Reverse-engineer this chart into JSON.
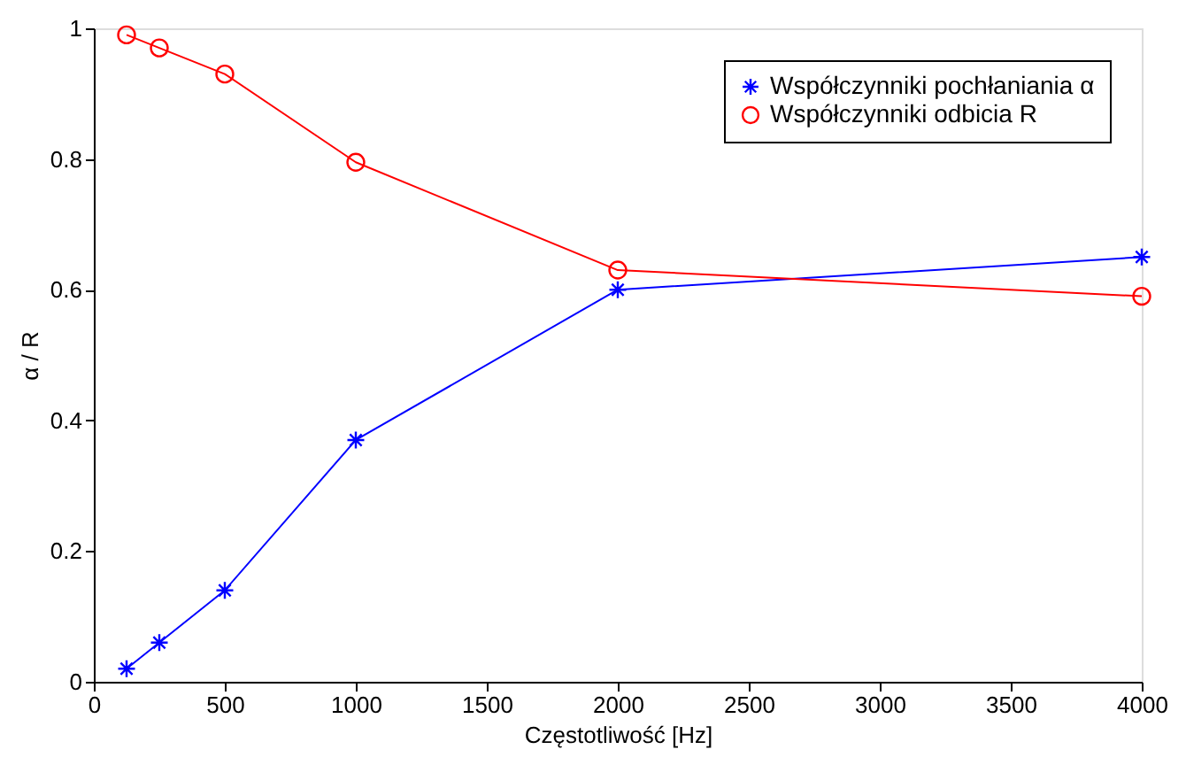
{
  "chart_data": {
    "type": "line",
    "xlabel": "Częstotliwość [Hz]",
    "ylabel": "α / R",
    "x": [
      125,
      250,
      500,
      1000,
      2000,
      4000
    ],
    "series": [
      {
        "name": "Współczynniki pochłaniania α",
        "color": "#0000ff",
        "marker": "cross",
        "values": [
          0.02,
          0.06,
          0.14,
          0.37,
          0.6,
          0.65
        ]
      },
      {
        "name": "Współczynniki odbicia R",
        "color": "#ff0000",
        "marker": "circle",
        "values": [
          0.99,
          0.97,
          0.93,
          0.795,
          0.63,
          0.59
        ]
      }
    ],
    "xlim": [
      0,
      4000
    ],
    "xticks": [
      0,
      500,
      1000,
      1500,
      2000,
      2500,
      3000,
      3500,
      4000
    ],
    "ylim": [
      0,
      1
    ],
    "yticks": [
      0,
      0.2,
      0.4,
      0.6,
      0.8,
      1
    ],
    "grid": false,
    "legend": "top right",
    "line_style": "solid"
  }
}
